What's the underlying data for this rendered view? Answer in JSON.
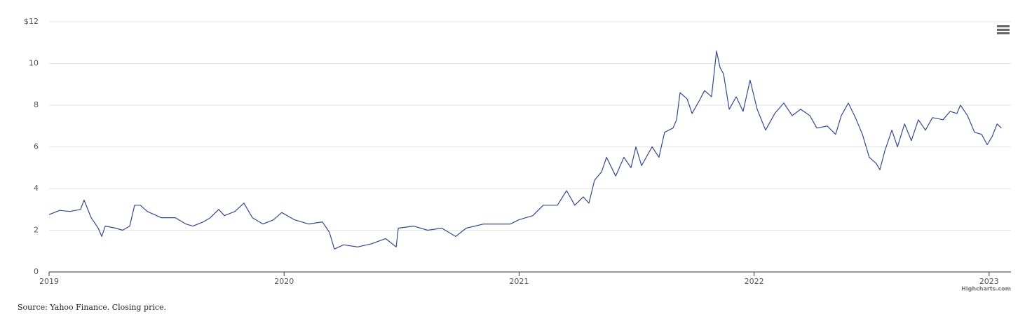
{
  "chart_data": {
    "type": "line",
    "x": [
      2019.0,
      2019.045,
      2019.089,
      2019.134,
      2019.149,
      2019.179,
      2019.209,
      2019.224,
      2019.239,
      2019.283,
      2019.313,
      2019.343,
      2019.364,
      2019.388,
      2019.418,
      2019.477,
      2019.537,
      2019.582,
      2019.612,
      2019.656,
      2019.686,
      2019.722,
      2019.746,
      2019.791,
      2019.829,
      2019.865,
      2019.91,
      2019.955,
      2019.99,
      2020.044,
      2020.104,
      2020.163,
      2020.193,
      2020.214,
      2020.253,
      2020.313,
      2020.372,
      2020.432,
      2020.477,
      2020.486,
      2020.551,
      2020.611,
      2020.671,
      2020.73,
      2020.775,
      2020.85,
      2020.909,
      2020.963,
      2020.999,
      2021.058,
      2021.103,
      2021.163,
      2021.202,
      2021.237,
      2021.273,
      2021.297,
      2021.321,
      2021.351,
      2021.372,
      2021.411,
      2021.446,
      2021.476,
      2021.497,
      2021.521,
      2021.566,
      2021.595,
      2021.619,
      2021.655,
      2021.67,
      2021.685,
      2021.715,
      2021.736,
      2021.766,
      2021.789,
      2021.819,
      2021.84,
      2021.855,
      2021.87,
      2021.894,
      2021.924,
      2021.953,
      2021.983,
      2022.013,
      2022.049,
      2022.088,
      2022.126,
      2022.162,
      2022.198,
      2022.237,
      2022.267,
      2022.311,
      2022.347,
      2022.371,
      2022.401,
      2022.431,
      2022.461,
      2022.49,
      2022.52,
      2022.535,
      2022.556,
      2022.586,
      2022.61,
      2022.64,
      2022.669,
      2022.699,
      2022.729,
      2022.759,
      2022.804,
      2022.834,
      2022.863,
      2022.878,
      2022.908,
      2022.938,
      2022.968,
      2022.992,
      2023.013,
      2023.034,
      2023.052
    ],
    "series": [
      {
        "color": "#34488c",
        "values": [
          2.75,
          2.95,
          2.9,
          3.0,
          3.45,
          2.6,
          2.1,
          1.7,
          2.2,
          2.1,
          2.0,
          2.2,
          3.2,
          3.2,
          2.9,
          2.6,
          2.6,
          2.3,
          2.2,
          2.4,
          2.6,
          3.0,
          2.7,
          2.9,
          3.3,
          2.6,
          2.3,
          2.5,
          2.85,
          2.5,
          2.3,
          2.4,
          1.9,
          1.1,
          1.3,
          1.2,
          1.35,
          1.6,
          1.2,
          2.1,
          2.2,
          2.0,
          2.1,
          1.7,
          2.1,
          2.3,
          2.3,
          2.3,
          2.5,
          2.7,
          3.2,
          3.2,
          3.9,
          3.2,
          3.6,
          3.3,
          4.4,
          4.8,
          5.5,
          4.6,
          5.5,
          5.0,
          6.0,
          5.1,
          6.0,
          5.5,
          6.7,
          6.9,
          7.3,
          8.6,
          8.3,
          7.6,
          8.2,
          8.7,
          8.4,
          10.6,
          9.8,
          9.5,
          7.8,
          8.4,
          7.7,
          9.2,
          7.8,
          6.8,
          7.6,
          8.1,
          7.5,
          7.8,
          7.5,
          6.9,
          7.0,
          6.6,
          7.5,
          8.1,
          7.4,
          6.6,
          5.5,
          5.2,
          4.9,
          5.8,
          6.8,
          6.0,
          7.1,
          6.3,
          7.3,
          6.8,
          7.4,
          7.3,
          7.7,
          7.6,
          8.0,
          7.5,
          6.7,
          6.6,
          6.1,
          6.5,
          7.1,
          6.9
        ]
      }
    ],
    "xlim": [
      2019,
      2023.093
    ],
    "xticks": [
      2019,
      2020,
      2021,
      2022,
      2023
    ],
    "ylim": [
      0,
      12
    ],
    "yticks": [
      0,
      2,
      4,
      6,
      8,
      10,
      {
        "value": 12,
        "label": "$12"
      }
    ],
    "grid": true,
    "credit": "Highcharts.com",
    "source": "Source: Yahoo Finance. Closing price."
  }
}
